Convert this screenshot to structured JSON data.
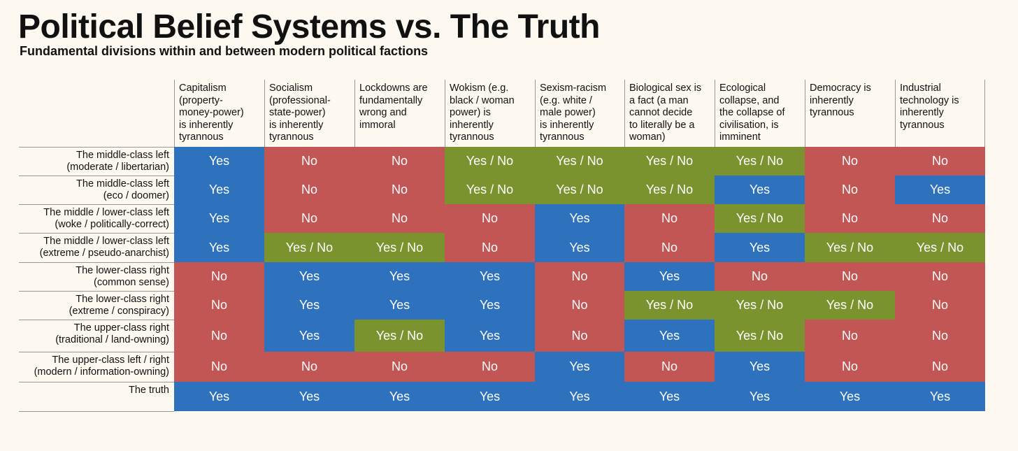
{
  "title": "Political Belief Systems vs. The Truth",
  "subtitle": "Fundamental divisions within and between modern political factions",
  "colors": {
    "Yes": "#2e72bd",
    "No": "#c25655",
    "Yes / No": "#7b932f"
  },
  "chart_data": {
    "type": "table",
    "columns": [
      [
        "Capitalism",
        "(property-",
        "money-power)",
        "is inherently",
        "tyrannous"
      ],
      [
        "Socialism",
        "(professional-",
        "state-power)",
        "is inherently",
        "tyrannous"
      ],
      [
        "Lockdowns are",
        "fundamentally",
        "wrong and",
        "immoral"
      ],
      [
        "Wokism (e.g.",
        "black / woman",
        "power) is",
        "inherently",
        "tyrannous"
      ],
      [
        "Sexism-racism",
        "(e.g. white /",
        "male power)",
        "is inherently",
        "tyrannous"
      ],
      [
        "Biological sex is",
        "a fact (a man",
        "cannot decide",
        "to literally be a",
        "woman)"
      ],
      [
        "Ecological",
        "collapse, and",
        "the collapse of",
        "civilisation, is",
        "imminent"
      ],
      [
        "Democracy is",
        "inherently",
        "tyrannous"
      ],
      [
        "Industrial",
        "technology is",
        "inherently",
        "tyrannous"
      ]
    ],
    "rows": [
      {
        "label": [
          "The middle-class left",
          "(moderate / libertarian)"
        ],
        "values": [
          "Yes",
          "No",
          "No",
          "Yes / No",
          "Yes / No",
          "Yes / No",
          "Yes / No",
          "No",
          "No"
        ]
      },
      {
        "label": [
          "The middle-class left",
          "(eco / doomer)"
        ],
        "values": [
          "Yes",
          "No",
          "No",
          "Yes / No",
          "Yes / No",
          "Yes / No",
          "Yes",
          "No",
          "Yes"
        ]
      },
      {
        "label": [
          "The middle / lower-class left",
          "(woke / politically-correct)"
        ],
        "values": [
          "Yes",
          "No",
          "No",
          "No",
          "Yes",
          "No",
          "Yes / No",
          "No",
          "No"
        ]
      },
      {
        "label": [
          "The middle / lower-class left",
          "(extreme / pseudo-anarchist)"
        ],
        "values": [
          "Yes",
          "Yes / No",
          "Yes / No",
          "No",
          "Yes",
          "No",
          "Yes",
          "Yes / No",
          "Yes / No"
        ]
      },
      {
        "label": [
          "The lower-class right",
          "(common sense)"
        ],
        "values": [
          "No",
          "Yes",
          "Yes",
          "Yes",
          "No",
          "Yes",
          "No",
          "No",
          "No"
        ]
      },
      {
        "label": [
          "The lower-class right",
          "(extreme / conspiracy)"
        ],
        "values": [
          "No",
          "Yes",
          "Yes",
          "Yes",
          "No",
          "Yes / No",
          "Yes / No",
          "Yes / No",
          "No"
        ]
      },
      {
        "label": [
          "The upper-class right",
          "(traditional / land-owning)"
        ],
        "values": [
          "No",
          "Yes",
          "Yes / No",
          "Yes",
          "No",
          "Yes",
          "Yes / No",
          "No",
          "No"
        ]
      },
      {
        "label": [
          "The upper-class left / right",
          "(modern / information-owning)"
        ],
        "values": [
          "No",
          "No",
          "No",
          "No",
          "Yes",
          "No",
          "Yes",
          "No",
          "No"
        ]
      },
      {
        "label": [
          "The truth"
        ],
        "values": [
          "Yes",
          "Yes",
          "Yes",
          "Yes",
          "Yes",
          "Yes",
          "Yes",
          "Yes",
          "Yes"
        ]
      }
    ]
  }
}
